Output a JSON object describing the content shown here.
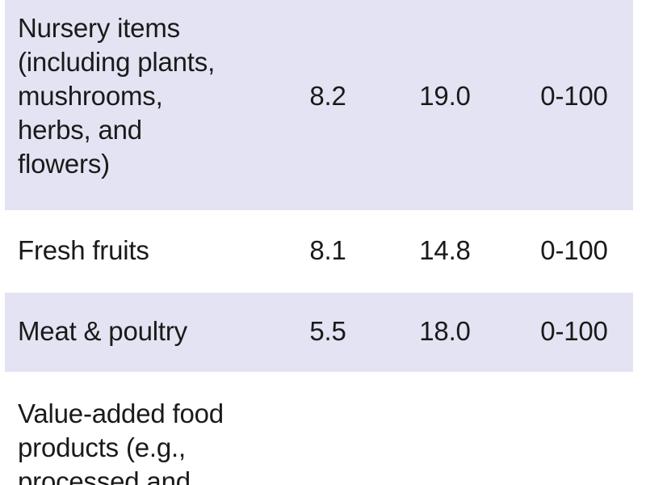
{
  "rows": [
    {
      "label_lines": [
        "Nursery items",
        "(including plants,",
        "mushrooms,",
        "herbs, and",
        "flowers)"
      ],
      "values": [
        "8.2",
        "19.0",
        "0-100"
      ]
    },
    {
      "label_lines": [
        "Fresh fruits"
      ],
      "values": [
        "8.1",
        "14.8",
        "0-100"
      ]
    },
    {
      "label_lines": [
        "Meat & poultry"
      ],
      "values": [
        "5.5",
        "18.0",
        "0-100"
      ]
    },
    {
      "label_lines": [
        "Value-added food",
        "products (e.g.,",
        "processed and"
      ],
      "values": []
    }
  ]
}
